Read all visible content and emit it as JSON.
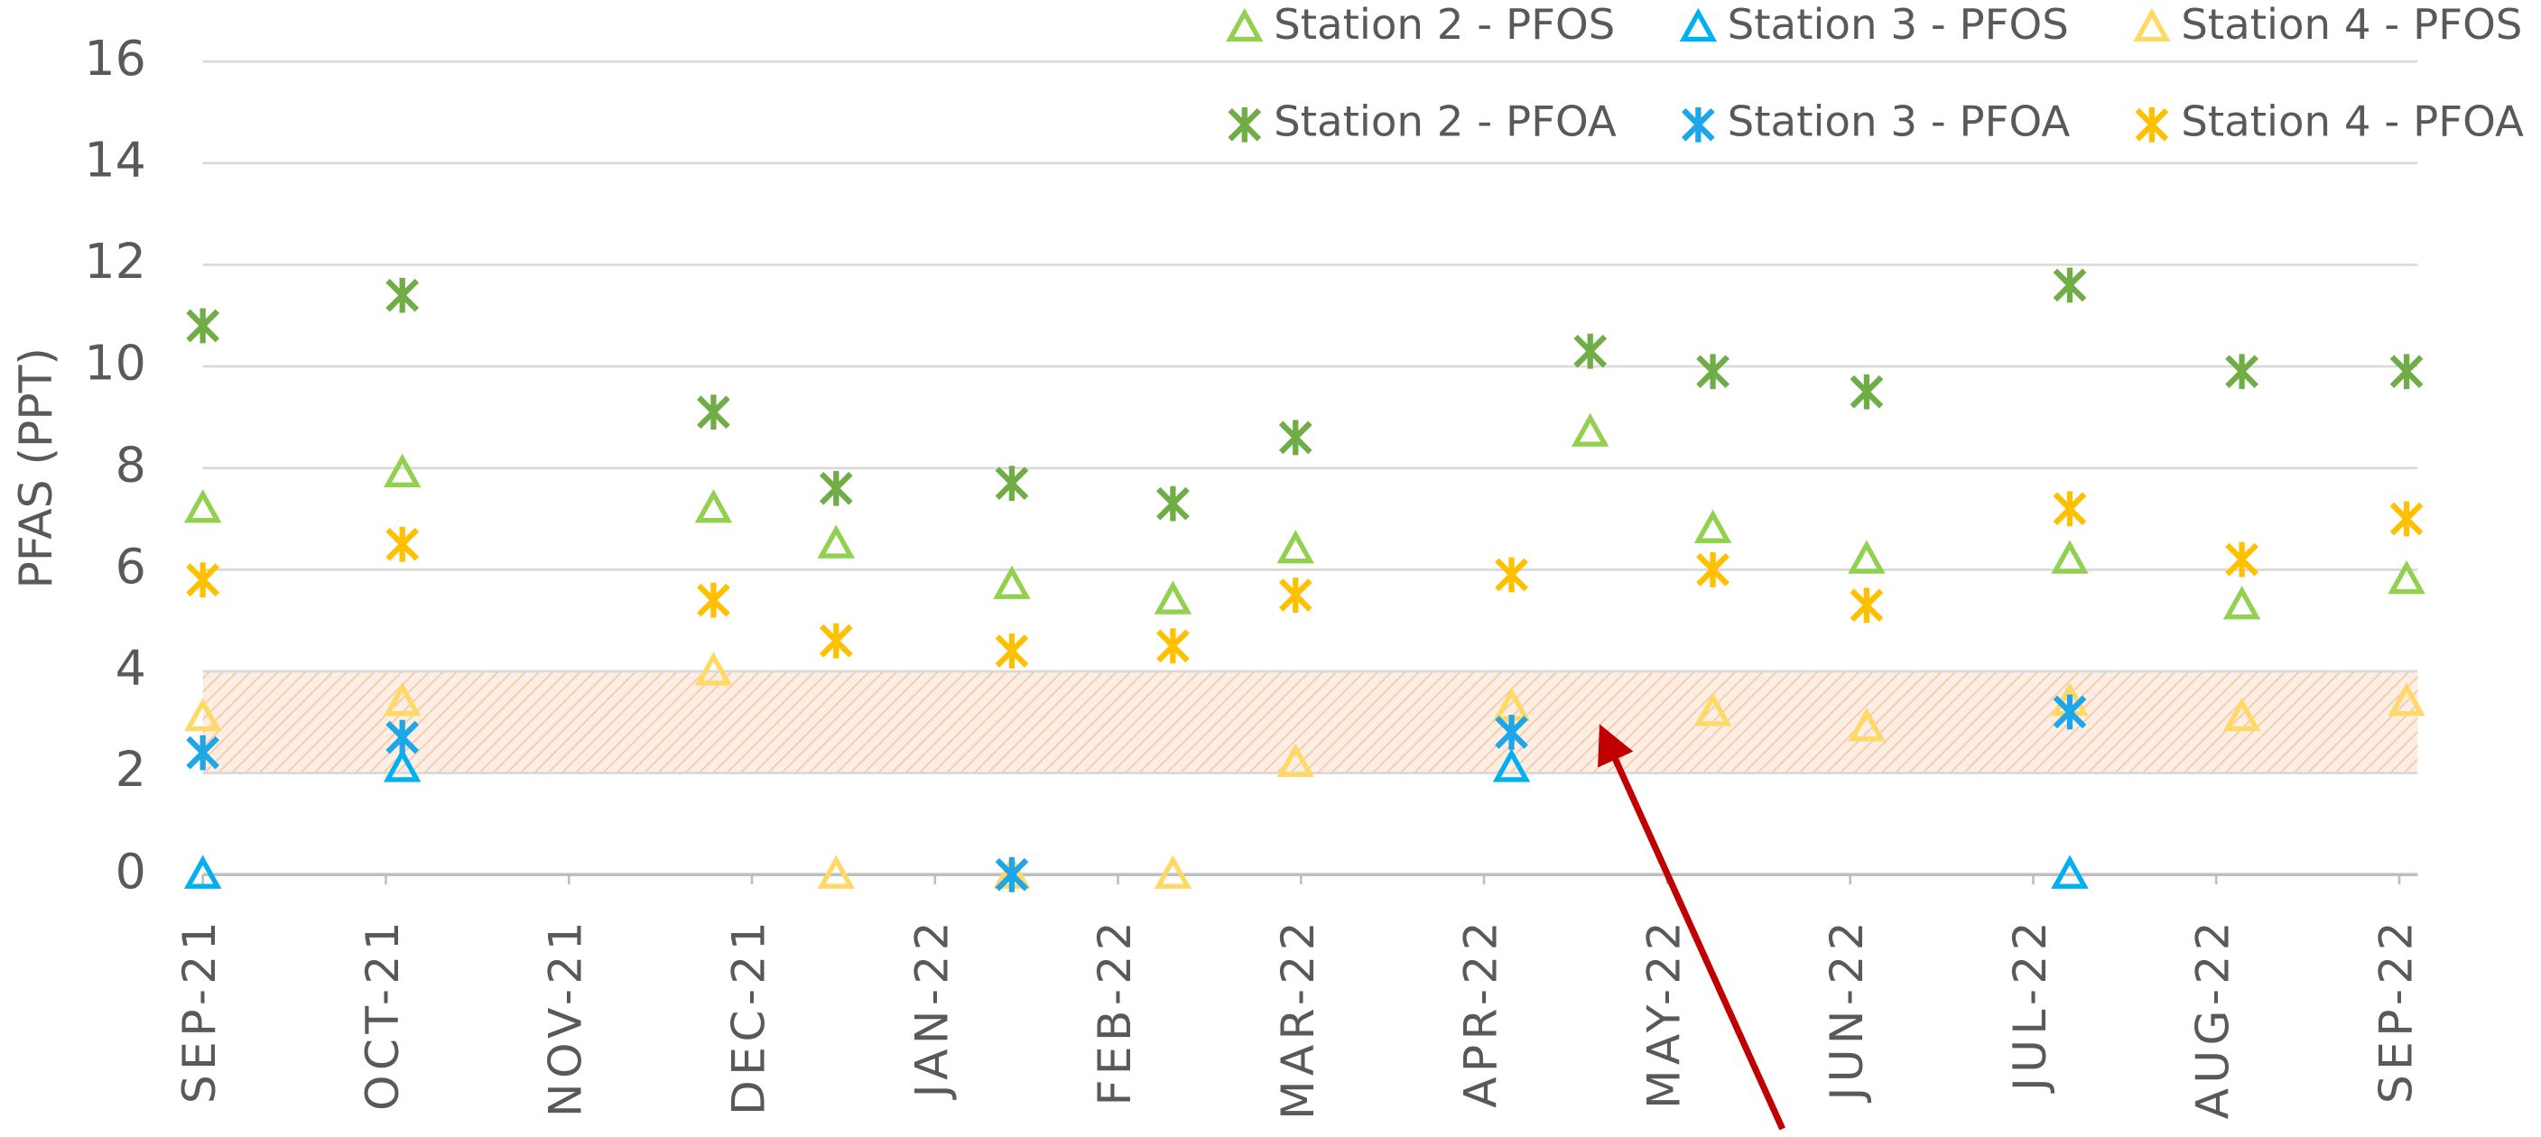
{
  "chart_data": {
    "type": "scatter",
    "y_label": "PFAS (PPT)",
    "x": [
      0,
      1.09,
      2.79,
      3.46,
      4.42,
      5.3,
      5.97,
      7.15,
      7.58,
      8.25,
      9.09,
      10.2,
      11.14,
      12.04
    ],
    "xlim": [
      0,
      12.1
    ],
    "xticks": [
      {
        "value": 0,
        "label": "SEP-21"
      },
      {
        "value": 1,
        "label": "OCT-21"
      },
      {
        "value": 2,
        "label": "NOV-21"
      },
      {
        "value": 3,
        "label": "DEC-21"
      },
      {
        "value": 4,
        "label": "JAN-22"
      },
      {
        "value": 5,
        "label": "FEB-22"
      },
      {
        "value": 6,
        "label": "MAR-22"
      },
      {
        "value": 7,
        "label": "APR-22"
      },
      {
        "value": 8,
        "label": "MAY-22"
      },
      {
        "value": 9,
        "label": "JUN-22"
      },
      {
        "value": 10,
        "label": "JUL-22"
      },
      {
        "value": 11,
        "label": "AUG-22"
      },
      {
        "value": 12,
        "label": "SEP-22"
      }
    ],
    "ylim": [
      0,
      16
    ],
    "yticks": [
      0,
      2,
      4,
      6,
      8,
      10,
      12,
      14,
      16
    ],
    "grid": true,
    "shaded_range": [
      2,
      4
    ],
    "series": [
      {
        "name": "Station 2 - PFOS",
        "color": "#92d050",
        "marker": "triangle",
        "values": [
          7.2,
          7.9,
          7.2,
          6.5,
          5.7,
          5.4,
          6.4,
          null,
          8.7,
          6.8,
          6.2,
          6.2,
          5.3,
          5.8
        ]
      },
      {
        "name": "Station 3 - PFOS",
        "color": "#00b0f0",
        "marker": "triangle",
        "values": [
          0,
          2.1,
          null,
          null,
          null,
          null,
          null,
          2.1,
          null,
          null,
          null,
          0,
          null,
          null
        ]
      },
      {
        "name": "Station 4 - PFOS",
        "color": "#ffd966",
        "marker": "triangle",
        "values": [
          3.1,
          3.4,
          4.0,
          0,
          0,
          0,
          2.2,
          3.3,
          null,
          3.2,
          2.9,
          3.4,
          3.1,
          3.4
        ]
      },
      {
        "name": "Station 2 - PFOA",
        "color": "#70ad47",
        "marker": "star",
        "values": [
          10.8,
          11.4,
          9.1,
          7.6,
          7.7,
          7.3,
          8.6,
          null,
          10.3,
          9.9,
          9.5,
          11.6,
          9.9,
          9.9
        ]
      },
      {
        "name": "Station 3 - PFOA",
        "color": "#1ea7e8",
        "marker": "star",
        "values": [
          2.4,
          2.7,
          null,
          null,
          0,
          null,
          null,
          2.8,
          null,
          null,
          null,
          3.2,
          null,
          null
        ]
      },
      {
        "name": "Station 4 - PFOA",
        "color": "#ffc000",
        "marker": "star",
        "values": [
          5.8,
          6.5,
          5.4,
          4.6,
          4.4,
          4.5,
          5.5,
          5.9,
          null,
          6.0,
          5.3,
          7.2,
          6.2,
          7.0
        ]
      }
    ]
  }
}
